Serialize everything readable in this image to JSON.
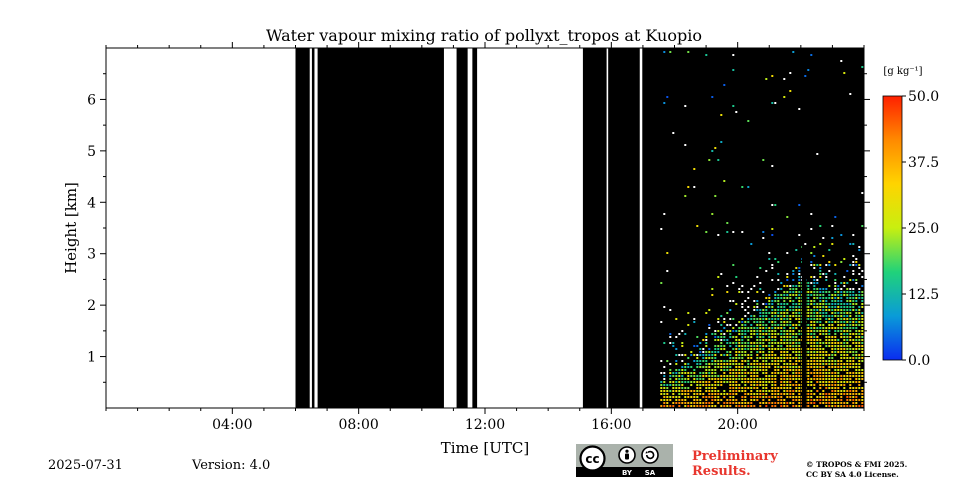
{
  "chart_data": {
    "type": "heatmap",
    "title": "Water vapour mixing ratio of pollyxt_tropos at Kuopio",
    "xlabel": "Time [UTC]",
    "ylabel": "Height [km]",
    "xlim_hours": [
      0,
      24
    ],
    "ylim_km": [
      0,
      7.0
    ],
    "x_ticks": [
      {
        "hour": 4,
        "label": "04:00"
      },
      {
        "hour": 8,
        "label": "08:00"
      },
      {
        "hour": 12,
        "label": "12:00"
      },
      {
        "hour": 16,
        "label": "16:00"
      },
      {
        "hour": 20,
        "label": "20:00"
      }
    ],
    "y_ticks": [
      {
        "km": 1,
        "label": "1"
      },
      {
        "km": 2,
        "label": "2"
      },
      {
        "km": 3,
        "label": "3"
      },
      {
        "km": 4,
        "label": "4"
      },
      {
        "km": 5,
        "label": "5"
      },
      {
        "km": 6,
        "label": "6"
      }
    ],
    "no_signal_periods_hours": [
      [
        6.0,
        6.45
      ],
      [
        6.52,
        6.6
      ],
      [
        6.7,
        10.7
      ],
      [
        11.1,
        11.45
      ],
      [
        11.6,
        11.75
      ],
      [
        15.1,
        15.85
      ],
      [
        15.9,
        16.9
      ],
      [
        16.98,
        24.0
      ]
    ],
    "valid_signal_start_hour": 17.55,
    "data_gap_hour": 22.1,
    "boundary_layer_top_km": [
      [
        17.6,
        0.55
      ],
      [
        18.0,
        0.75
      ],
      [
        19.0,
        1.1
      ],
      [
        20.0,
        1.6
      ],
      [
        21.0,
        2.1
      ],
      [
        22.0,
        2.5
      ],
      [
        23.0,
        2.3
      ],
      [
        24.0,
        2.3
      ]
    ],
    "colorbar": {
      "unit": "[g kg⁻¹]",
      "min": 0.0,
      "max": 50.0,
      "ticks": [
        "50.0",
        "37.5",
        "25.0",
        "12.5",
        "0.0"
      ],
      "colors": [
        "#0a2cf0",
        "#0a9bd8",
        "#20d27a",
        "#c8ef10",
        "#ffd400",
        "#ff8a00",
        "#ff2000"
      ]
    }
  },
  "footer": {
    "date": "2025-07-31",
    "version": "Version: 4.0",
    "preliminary_line1": "Preliminary",
    "preliminary_line2": "Results.",
    "copyright_line1": "© TROPOS & FMI 2025.",
    "copyright_line2": "CC BY SA 4.0 License.",
    "license_badge": {
      "cc": "cc",
      "by": "BY",
      "sa": "SA"
    }
  }
}
